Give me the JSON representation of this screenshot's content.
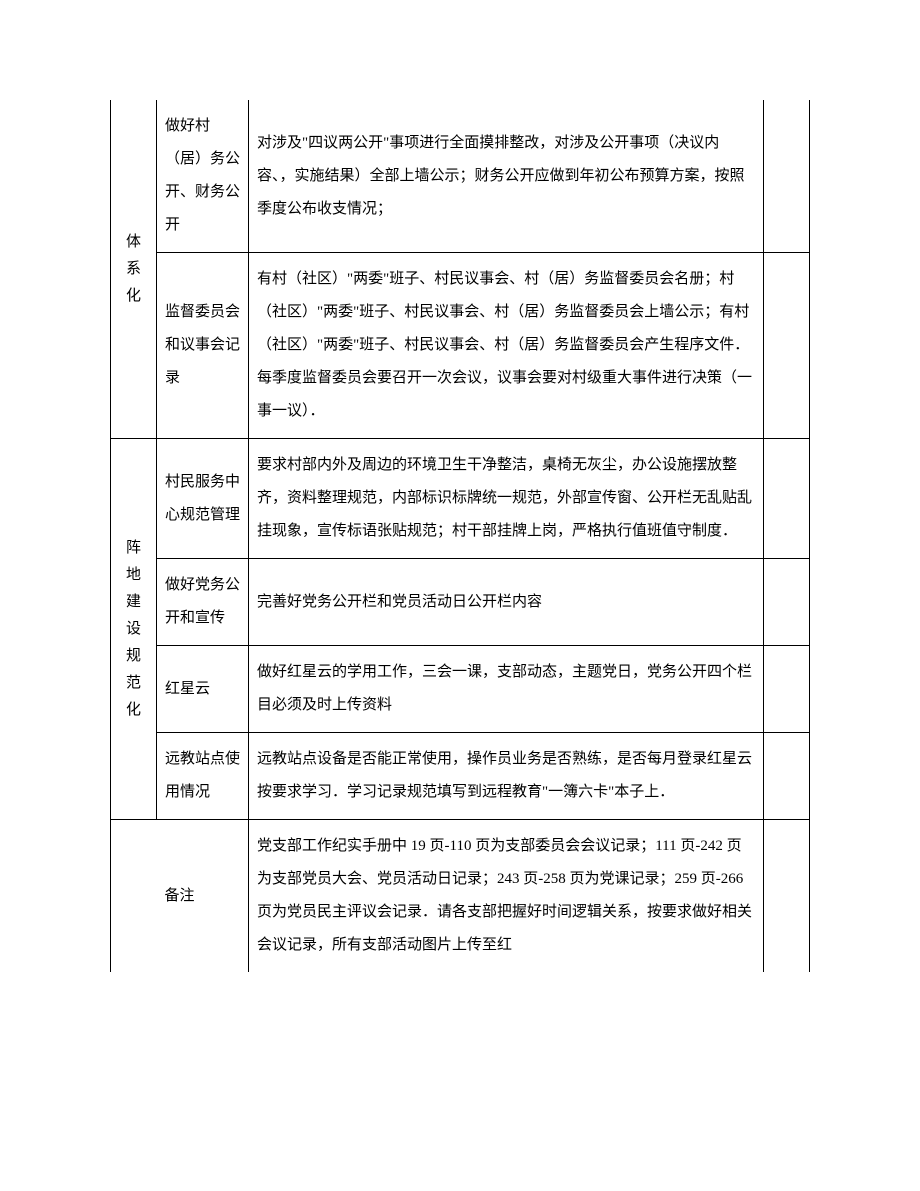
{
  "rows": [
    {
      "cat": "体系化",
      "item": "做好村（居）务公开、财务公开",
      "desc": "对涉及\"四议两公开\"事项进行全面摸排整改，对涉及公开事项（决议内容、，实施结果）全部上墙公示；财务公开应做到年初公布预算方案，按照季度公布收支情况；"
    },
    {
      "item": "监督委员会和议事会记录",
      "desc": "有村（社区）\"两委\"班子、村民议事会、村（居）务监督委员会名册；村（社区）\"两委\"班子、村民议事会、村（居）务监督委员会上墙公示；有村（社区）\"两委\"班子、村民议事会、村（居）务监督委员会产生程序文件．每季度监督委员会要召开一次会议，议事会要对村级重大事件进行决策（一事一议）．"
    },
    {
      "cat": "阵地建设规范化",
      "item": "村民服务中心规范管理",
      "desc": "要求村部内外及周边的环境卫生干净整洁，桌椅无灰尘，办公设施摆放整齐，资料整理规范，内部标识标牌统一规范，外部宣传窗、公开栏无乱贴乱挂现象，宣传标语张贴规范；村干部挂牌上岗，严格执行值班值守制度．"
    },
    {
      "item": "做好党务公开和宣传",
      "desc": "完善好党务公开栏和党员活动日公开栏内容"
    },
    {
      "item": "红星云",
      "desc": "做好红星云的学用工作，三会一课，支部动态，主题党日，党务公开四个栏目必须及时上传资料"
    },
    {
      "item": "远教站点使用情况",
      "desc": "远教站点设备是否能正常使用，操作员业务是否熟练，是否每月登录红星云按要求学习．学习记录规范填写到远程教育\"一簿六卡\"本子上．"
    },
    {
      "cat": "备注",
      "desc": "党支部工作纪实手册中 19 页-110 页为支部委员会会议记录；111 页-242 页为支部党员大会、党员活动日记录；243 页-258 页为党课记录；259 页-266 页为党员民主评议会记录．请各支部把握好时间逻辑关系，按要求做好相关会议记录，所有支部活动图片上传至红"
    }
  ],
  "colors": {
    "text": "#000000",
    "border": "#000000",
    "background": "#ffffff"
  },
  "font": {
    "family": "SimSun",
    "size": 15,
    "line_height": 2.2
  }
}
